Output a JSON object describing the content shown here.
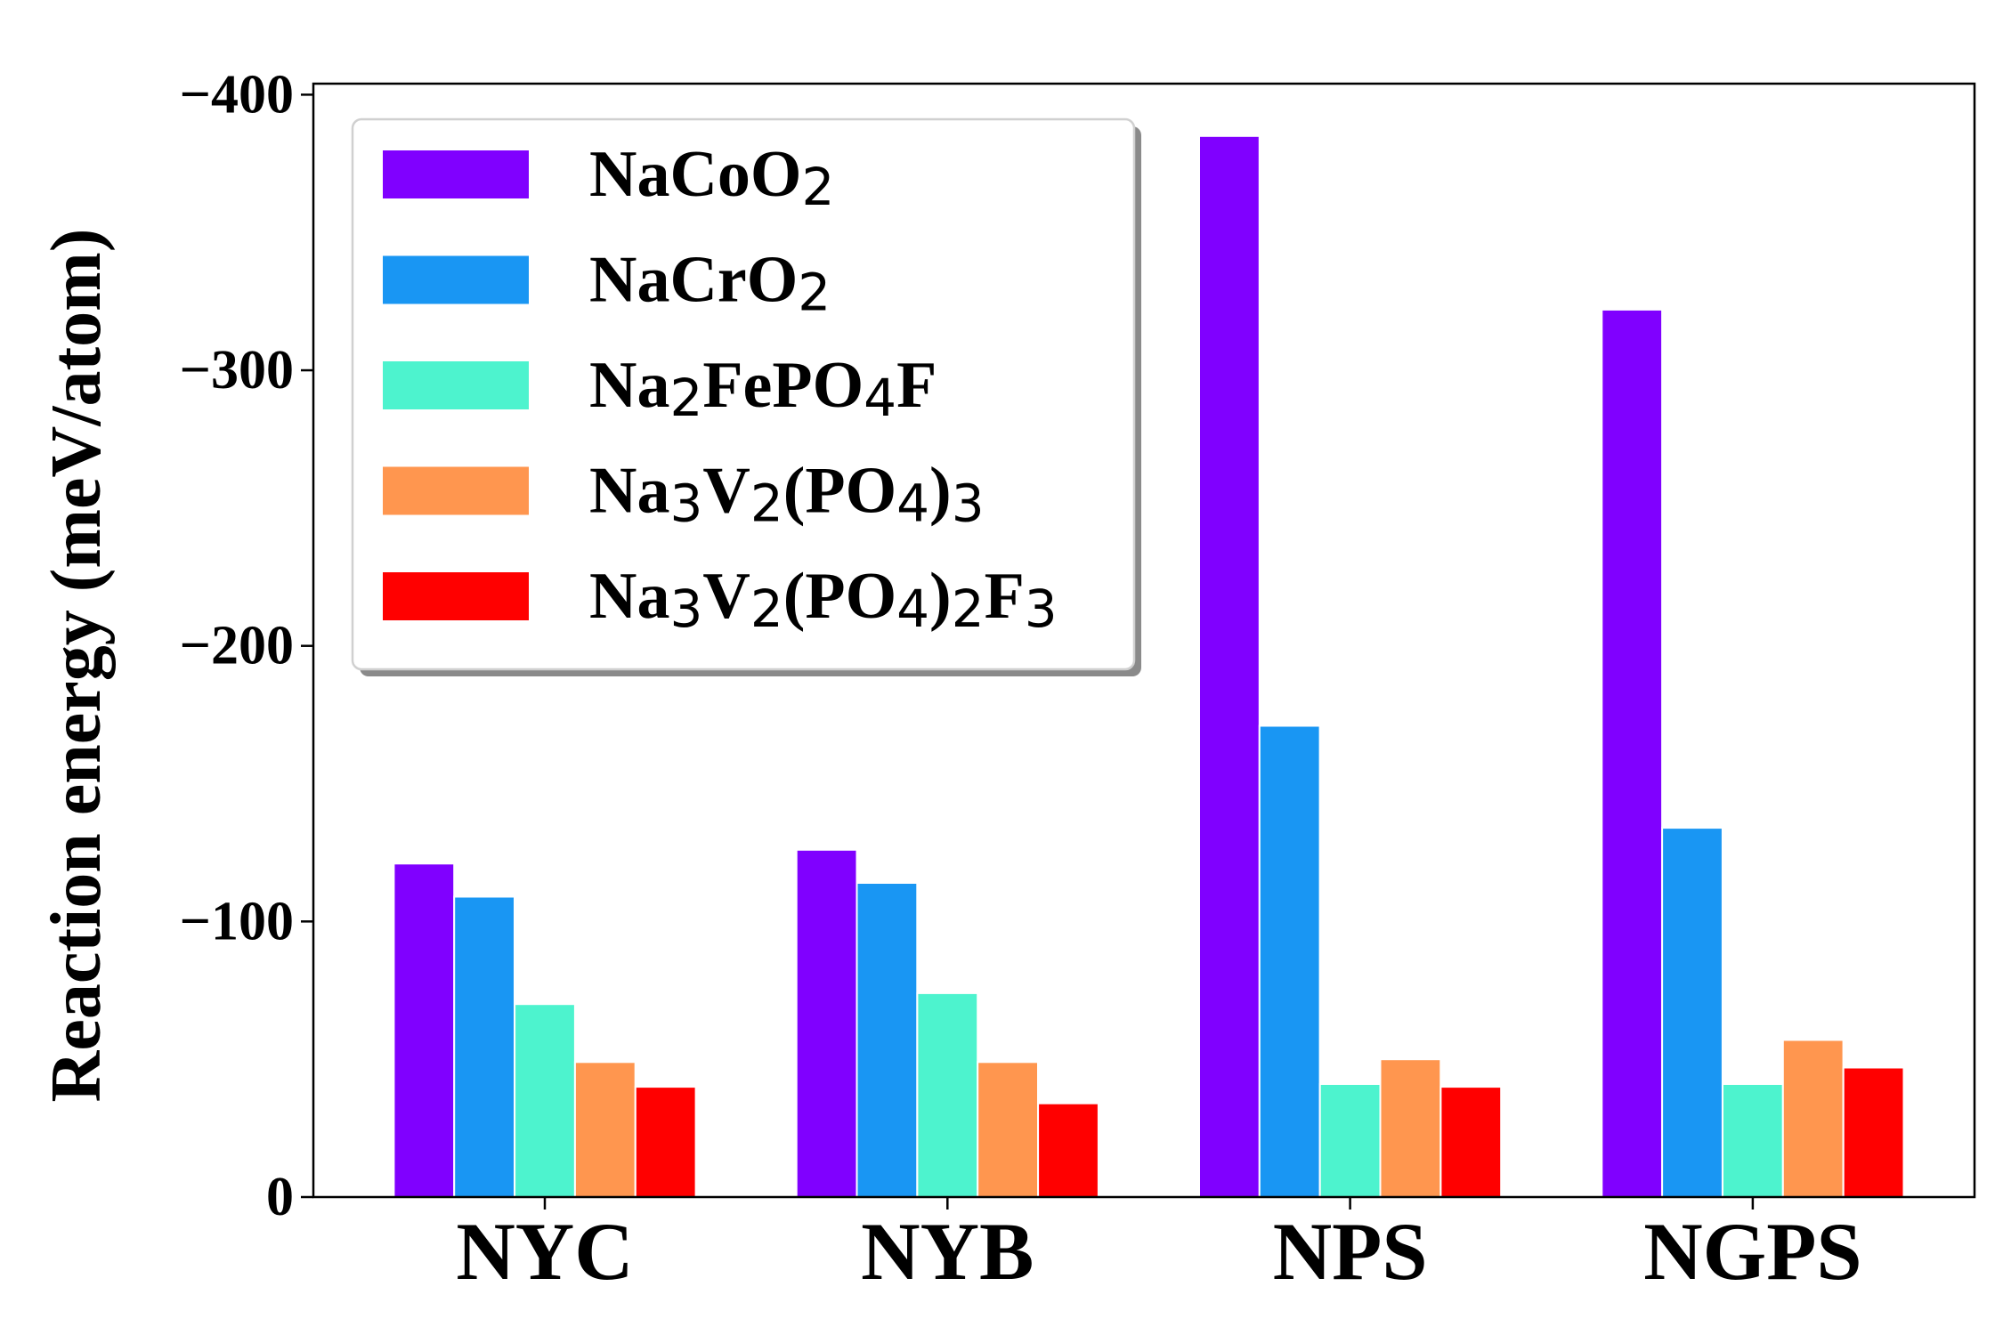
{
  "chart_data": {
    "type": "bar",
    "title": "",
    "xlabel": "",
    "ylabel": "Reaction energy (meV/atom)",
    "categories": [
      "NYC",
      "NYB",
      "NPS",
      "NGPS"
    ],
    "y_inverted": true,
    "ylim": [
      0,
      -404
    ],
    "yticks": [
      0,
      -100,
      -200,
      -300,
      -400
    ],
    "ytick_labels": [
      "0",
      "−100",
      "−200",
      "−300",
      "−400"
    ],
    "grid": false,
    "legend": "top-left",
    "series": [
      {
        "name": "NaCoO2",
        "label_parts": [
          {
            "t": "NaCoO"
          },
          {
            "t": "2",
            "sub": true
          }
        ],
        "color": "#8000ff",
        "values": [
          -121,
          -126,
          -385,
          -322
        ]
      },
      {
        "name": "NaCrO2",
        "label_parts": [
          {
            "t": "NaCrO"
          },
          {
            "t": "2",
            "sub": true
          }
        ],
        "color": "#1996f3",
        "values": [
          -109,
          -114,
          -171,
          -134
        ]
      },
      {
        "name": "Na2FePO4F",
        "label_parts": [
          {
            "t": "Na"
          },
          {
            "t": "2",
            "sub": true
          },
          {
            "t": "FePO"
          },
          {
            "t": "4",
            "sub": true
          },
          {
            "t": "F"
          }
        ],
        "color": "#4df3ce",
        "values": [
          -70,
          -74,
          -41,
          -41
        ]
      },
      {
        "name": "Na3V2(PO4)3",
        "label_parts": [
          {
            "t": "Na"
          },
          {
            "t": "3",
            "sub": true
          },
          {
            "t": "V"
          },
          {
            "t": "2",
            "sub": true
          },
          {
            "t": "(PO"
          },
          {
            "t": "4",
            "sub": true
          },
          {
            "t": ")"
          },
          {
            "t": "3",
            "sub": true
          }
        ],
        "color": "#ff964f",
        "values": [
          -49,
          -49,
          -50,
          -57
        ]
      },
      {
        "name": "Na3V2(PO4)2F3",
        "label_parts": [
          {
            "t": "Na"
          },
          {
            "t": "3",
            "sub": true
          },
          {
            "t": "V"
          },
          {
            "t": "2",
            "sub": true
          },
          {
            "t": "(PO"
          },
          {
            "t": "4",
            "sub": true
          },
          {
            "t": ")"
          },
          {
            "t": "2",
            "sub": true
          },
          {
            "t": "F"
          },
          {
            "t": "3",
            "sub": true
          }
        ],
        "color": "#ff0000",
        "values": [
          -40,
          -34,
          -40,
          -47
        ]
      }
    ]
  }
}
